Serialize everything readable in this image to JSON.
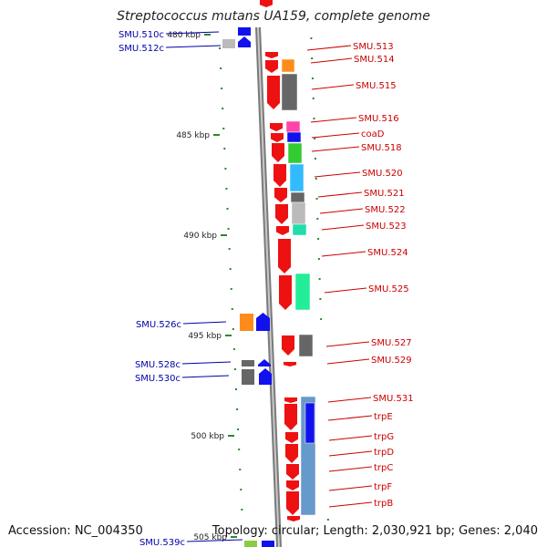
{
  "title": "Streptococcus mutans UA159, complete genome",
  "footer": {
    "accession": "Accession: NC_004350",
    "summary": "Topology: circular; Length: 2,030,921 bp; Genes: 2,040"
  },
  "colors": {
    "backbone": "#9a9a9a",
    "forward": "#ee1111",
    "reverse": "#1111ee",
    "tick": "#2a8a2a",
    "label_forward": "#cc0000",
    "label_reverse": "#0000aa"
  },
  "ticks": [
    "480 kbp",
    "485 kbp",
    "490 kbp",
    "495 kbp",
    "500 kbp",
    "505 kbp"
  ],
  "forward_genes": [
    "SMU.513",
    "SMU.514",
    "SMU.515",
    "SMU.516",
    "coaD",
    "SMU.518",
    "SMU.520",
    "SMU.521",
    "SMU.522",
    "SMU.523",
    "SMU.524",
    "SMU.525",
    "SMU.527",
    "SMU.529",
    "SMU.531",
    "trpE",
    "trpG",
    "trpD",
    "trpC",
    "trpF",
    "trpB"
  ],
  "reverse_genes": [
    "SMU.510c",
    "SMU.512c",
    "SMU.526c",
    "SMU.528c",
    "SMU.530c",
    "SMU.539c"
  ]
}
